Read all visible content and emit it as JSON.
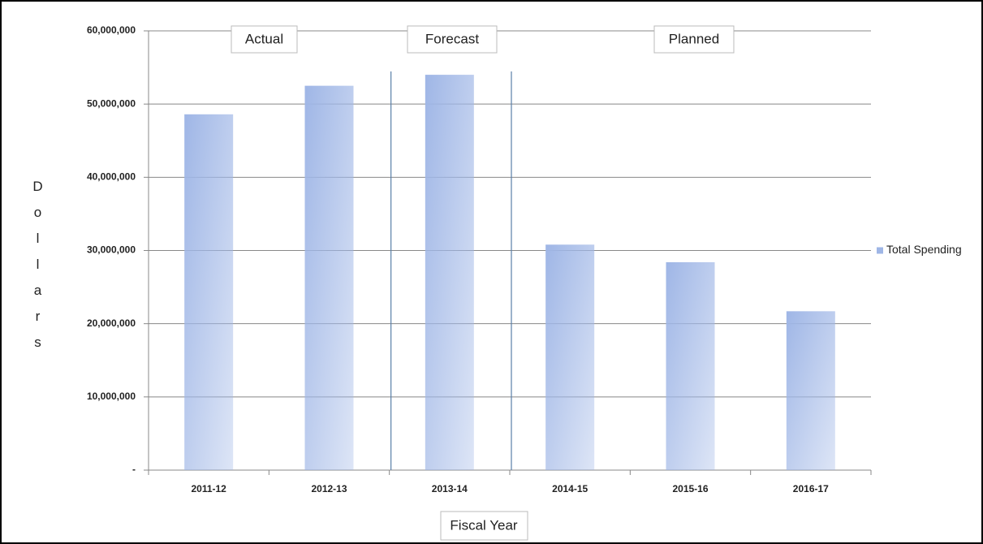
{
  "chart_data": {
    "type": "bar",
    "categories": [
      "2011-12",
      "2012-13",
      "2013-14",
      "2014-15",
      "2015-16",
      "2016-17"
    ],
    "values": [
      48600000,
      52500000,
      54000000,
      30800000,
      28400000,
      21700000
    ],
    "color": "#9fb6e6",
    "series_name": "Total Spending",
    "xlabel": "Fiscal Year",
    "ylabel": "Dollars",
    "annotations": [
      "Actual",
      "Forecast",
      "Planned"
    ],
    "ylim": [
      0,
      60000000
    ],
    "yticks": [
      {
        "value": 0,
        "label": "-"
      },
      {
        "value": 10000000,
        "label": "10,000,000"
      },
      {
        "value": 20000000,
        "label": "20,000,000"
      },
      {
        "value": 30000000,
        "label": "30,000,000"
      },
      {
        "value": 40000000,
        "label": "40,000,000"
      },
      {
        "value": 50000000,
        "label": "50,000,000"
      },
      {
        "value": 60000000,
        "label": "60,000,000"
      }
    ],
    "grid": true,
    "legend": "right"
  }
}
